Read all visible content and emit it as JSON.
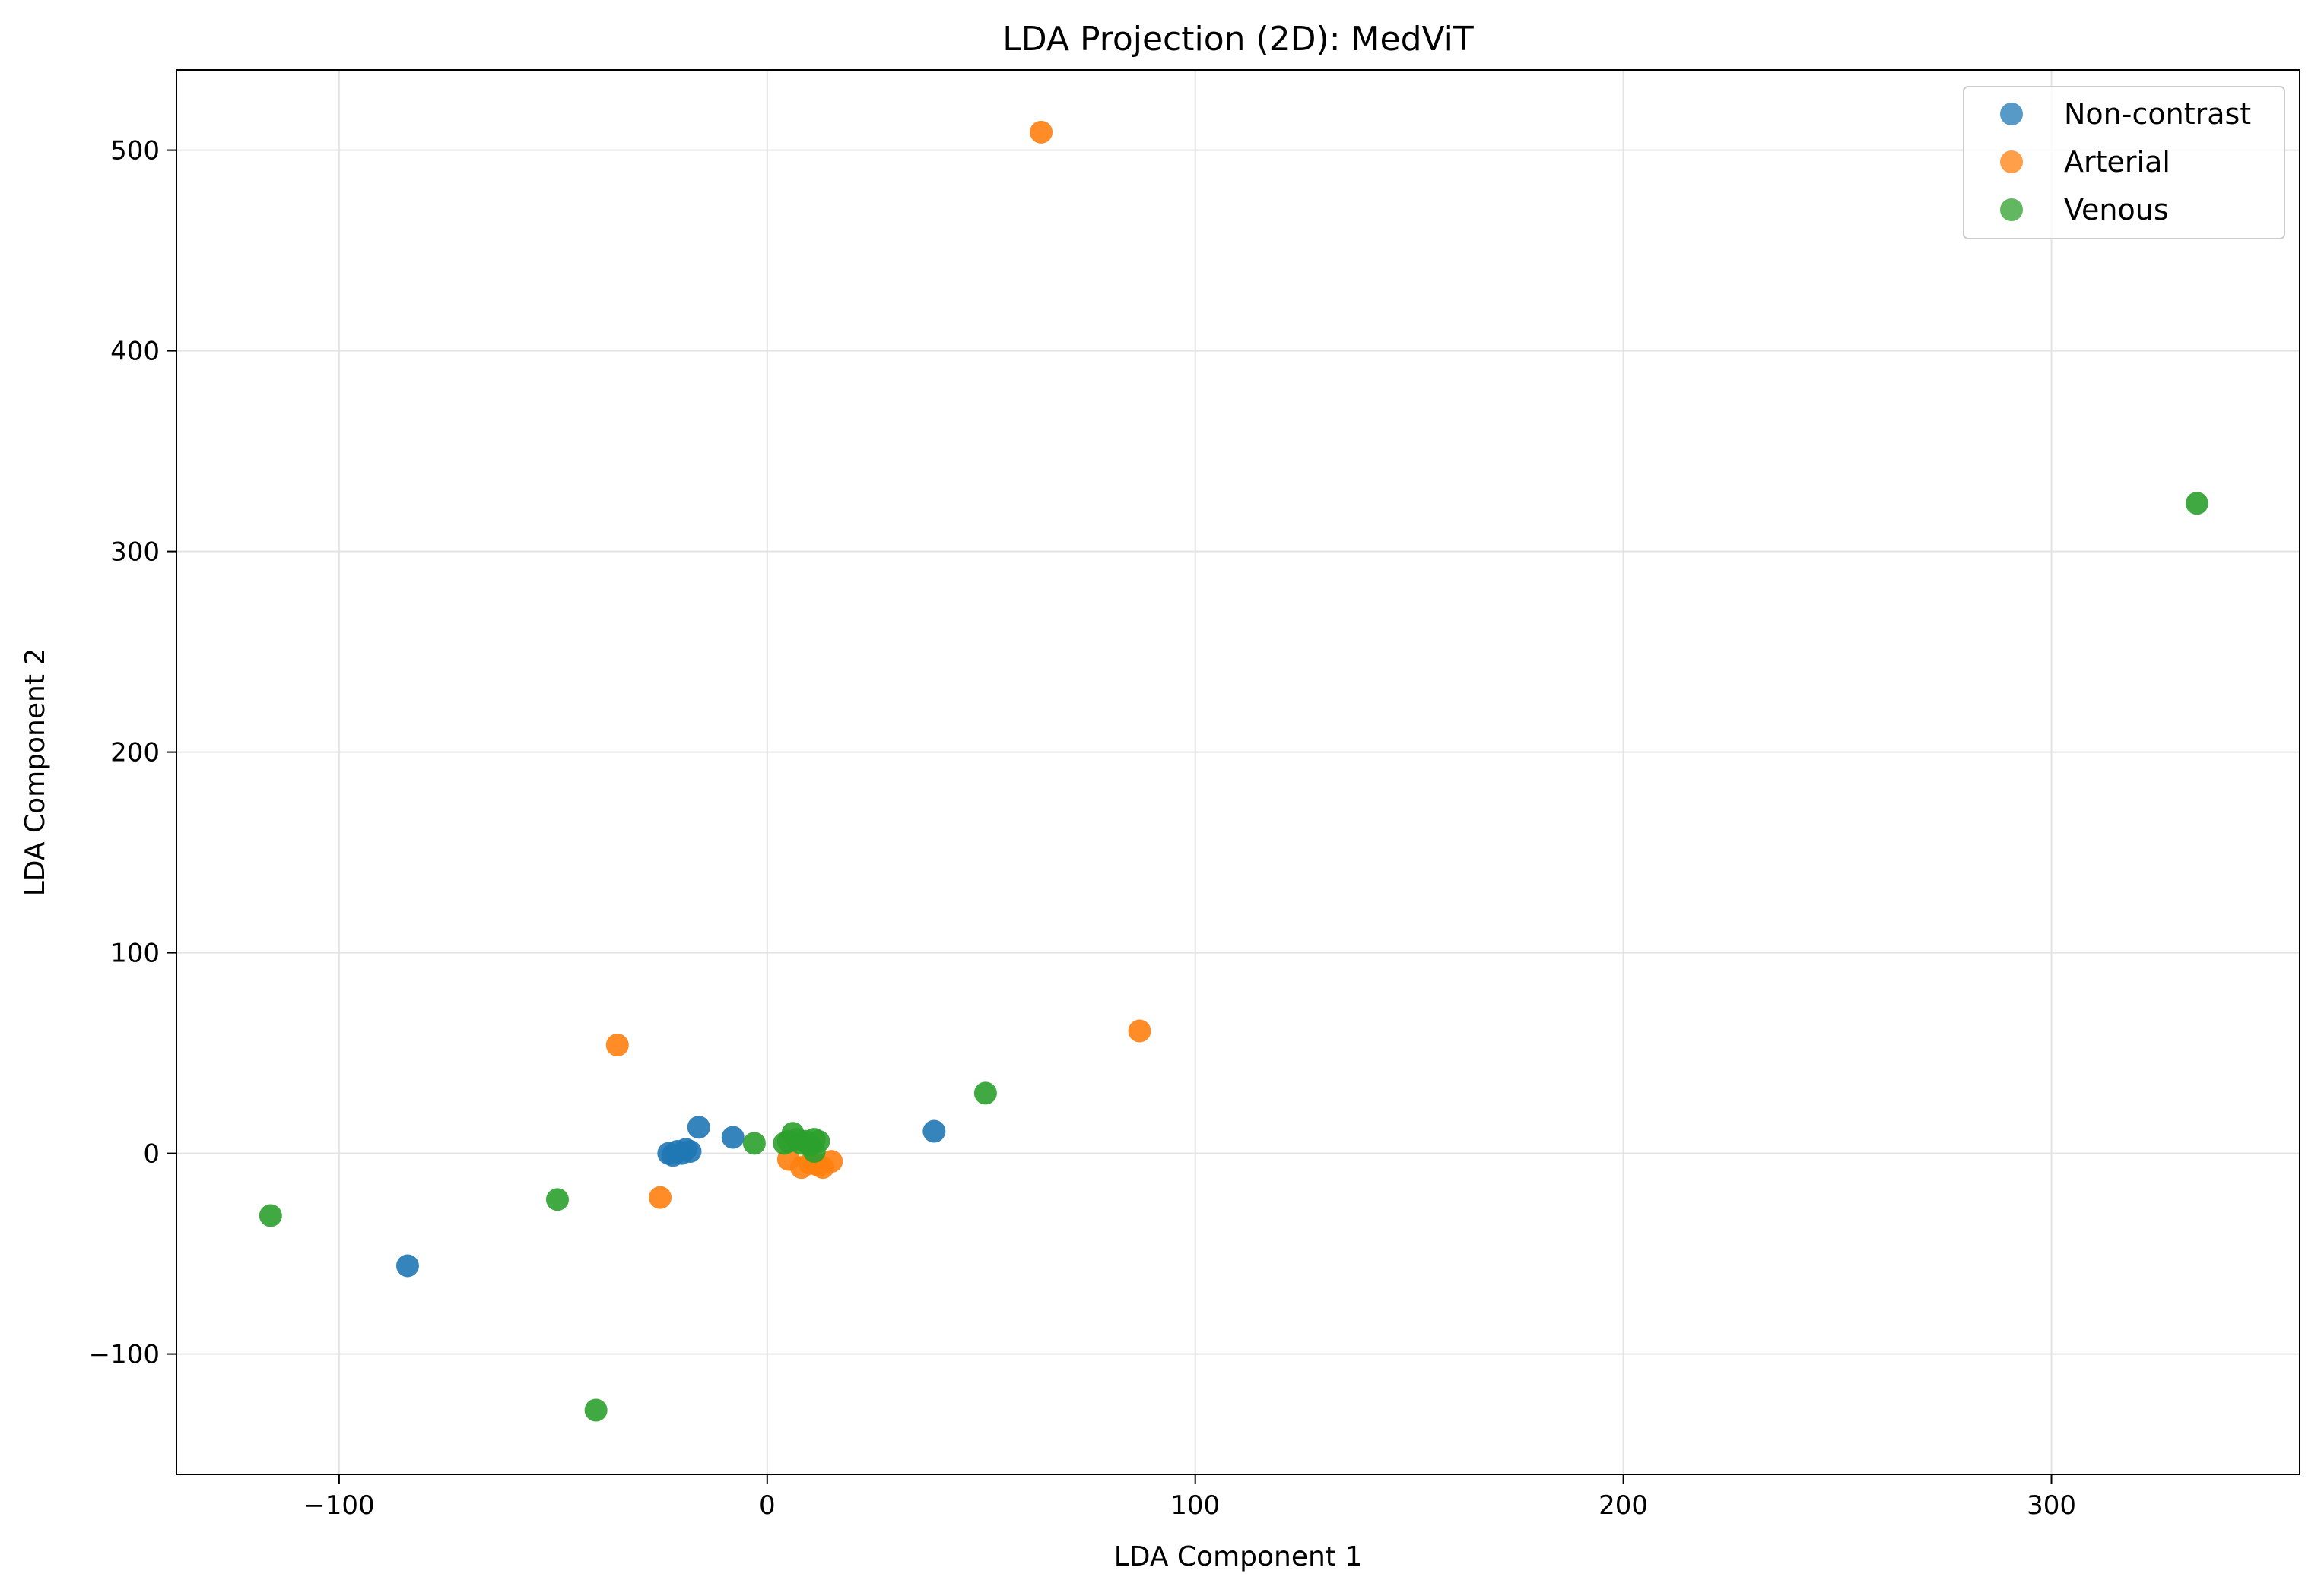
{
  "chart_data": {
    "type": "scatter",
    "title": "LDA Projection (2D): MedViT",
    "xlabel": "LDA Component 1",
    "ylabel": "LDA Component 2",
    "xlim": [
      -138,
      358
    ],
    "ylim": [
      -160,
      540
    ],
    "xticks": [
      -100,
      0,
      100,
      200,
      300
    ],
    "yticks": [
      -100,
      0,
      100,
      200,
      300,
      400,
      500
    ],
    "xtick_labels": [
      "−100",
      "0",
      "100",
      "200",
      "300"
    ],
    "ytick_labels": [
      "−100",
      "0",
      "100",
      "200",
      "300",
      "400",
      "500"
    ],
    "grid": true,
    "legend_position": "top-right",
    "series": [
      {
        "name": "Non-contrast",
        "color": "#1f77b4",
        "points": [
          [
            -84,
            -56
          ],
          [
            -23,
            0
          ],
          [
            -22,
            -1
          ],
          [
            -21,
            1
          ],
          [
            -20,
            0
          ],
          [
            -19,
            2
          ],
          [
            -18,
            1
          ],
          [
            -16,
            13
          ],
          [
            -8,
            8
          ],
          [
            39,
            11
          ]
        ]
      },
      {
        "name": "Arterial",
        "color": "#ff7f0e",
        "points": [
          [
            64,
            509
          ],
          [
            87,
            61
          ],
          [
            -35,
            54
          ],
          [
            -25,
            -22
          ],
          [
            5,
            -3
          ],
          [
            8,
            -7
          ],
          [
            10,
            -5
          ],
          [
            12,
            -6
          ],
          [
            13,
            -7
          ],
          [
            15,
            -4
          ]
        ]
      },
      {
        "name": "Venous",
        "color": "#2ca02c",
        "points": [
          [
            334,
            324
          ],
          [
            51,
            30
          ],
          [
            -116,
            -31
          ],
          [
            -49,
            -23
          ],
          [
            -40,
            -128
          ],
          [
            -3,
            5
          ],
          [
            4,
            5
          ],
          [
            5,
            6
          ],
          [
            6,
            10
          ],
          [
            7,
            7
          ],
          [
            8,
            5
          ],
          [
            9,
            6
          ],
          [
            10,
            4
          ],
          [
            11,
            7
          ],
          [
            12,
            6
          ],
          [
            11,
            1
          ]
        ]
      }
    ]
  }
}
